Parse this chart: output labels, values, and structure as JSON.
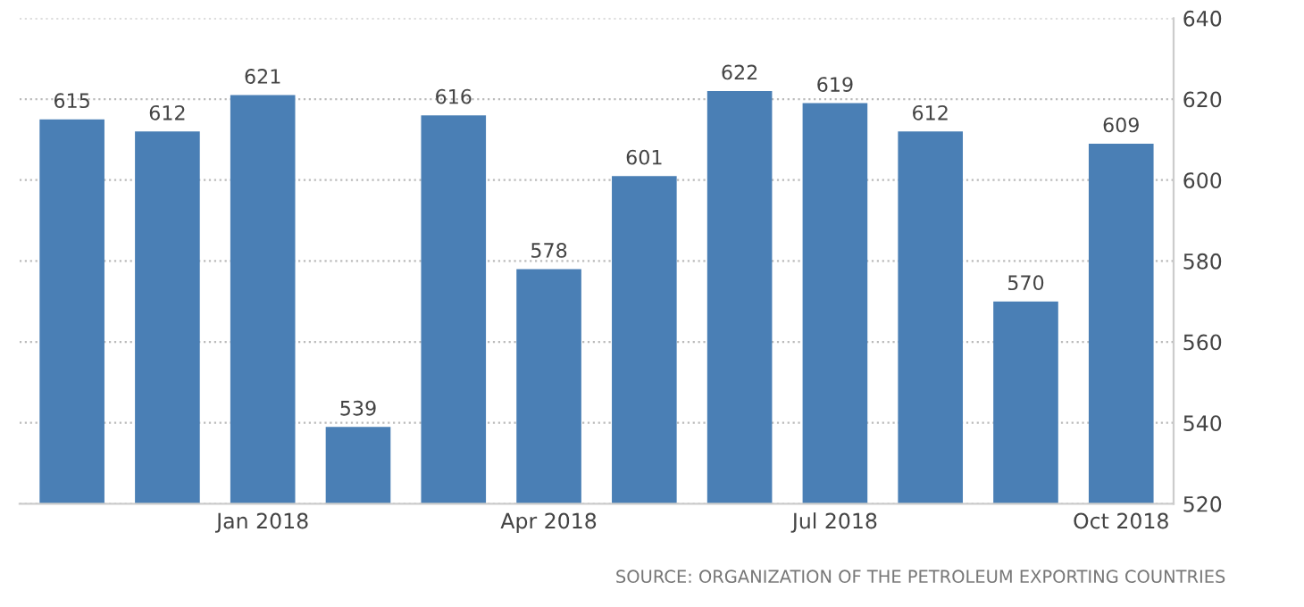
{
  "chart_data": {
    "type": "bar",
    "categories": [
      null,
      null,
      "Jan 2018",
      null,
      null,
      "Apr 2018",
      null,
      null,
      "Jul 2018",
      null,
      null,
      "Oct 2018"
    ],
    "values": [
      615,
      612,
      621,
      539,
      616,
      578,
      601,
      622,
      619,
      612,
      570,
      609
    ],
    "color": "#4a7fb5",
    "ylim": [
      520,
      640
    ],
    "yticks": [
      520,
      540,
      560,
      580,
      600,
      620,
      640
    ],
    "grid": "y",
    "data_labels": true,
    "legend": false,
    "annotations": [
      "SOURCE: ORGANIZATION OF THE PETROLEUM EXPORTING COUNTRIES"
    ]
  }
}
